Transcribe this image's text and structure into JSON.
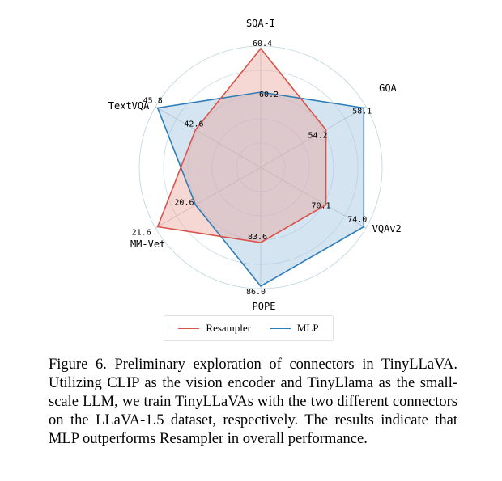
{
  "chart_data": {
    "type": "radar",
    "axes": [
      "SQA-I",
      "GQA",
      "VQAv2",
      "POPE",
      "MM-Vet",
      "TextVQA"
    ],
    "series": [
      {
        "name": "Resampler",
        "values": [
          60.4,
          54.2,
          70.1,
          83.6,
          21.6,
          42.6
        ],
        "color": "#d9534a",
        "fill": "#e8a6a0"
      },
      {
        "name": "MLP",
        "values": [
          60.2,
          58.1,
          74.0,
          86.0,
          20.6,
          45.8
        ],
        "color": "#2f7db8",
        "fill": "#9fc6e0"
      }
    ],
    "value_labels": [
      {
        "series": "Resampler",
        "axis": "SQA-I",
        "text": "60.4"
      },
      {
        "series": "MLP",
        "axis": "SQA-I",
        "text": "60.2"
      },
      {
        "series": "MLP",
        "axis": "GQA",
        "text": "58.1"
      },
      {
        "series": "Resampler",
        "axis": "GQA",
        "text": "54.2"
      },
      {
        "series": "MLP",
        "axis": "VQAv2",
        "text": "74.0"
      },
      {
        "series": "Resampler",
        "axis": "VQAv2",
        "text": "70.1"
      },
      {
        "series": "Resampler",
        "axis": "POPE",
        "text": "83.6"
      },
      {
        "series": "MLP",
        "axis": "POPE",
        "text": "86.0"
      },
      {
        "series": "MLP",
        "axis": "MM-Vet",
        "text": "20.6"
      },
      {
        "series": "Resampler",
        "axis": "MM-Vet",
        "text": "21.6"
      },
      {
        "series": "MLP",
        "axis": "TextVQA",
        "text": "45.8"
      },
      {
        "series": "Resampler",
        "axis": "TextVQA",
        "text": "42.6"
      }
    ],
    "grid": true,
    "legend": "bottom-center"
  },
  "caption": "Figure 6. Preliminary exploration of connectors in TinyLLaVA. Utilizing CLIP as the vision encoder and TinyLlama as the small-scale LLM, we train TinyLLaVAs with the two different connectors on the LLaVA-1.5 dataset, respectively. The results indicate that MLP outperforms Resampler in overall performance."
}
